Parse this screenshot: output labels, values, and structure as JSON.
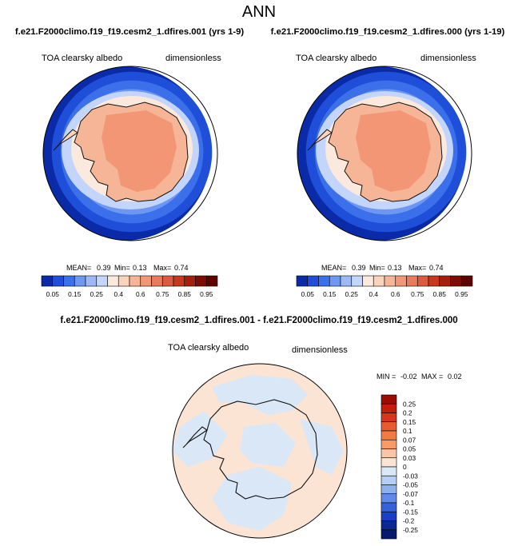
{
  "page_title": "ANN",
  "chart_data": [
    {
      "type": "heatmap",
      "projection": "south-polar-stereographic",
      "title": "f.e21.F2000climo.f19_f19.cesm2_1.dfires.001 (yrs 1-9)",
      "variable": "TOA clearsky albedo",
      "units": "dimensionless",
      "stats": {
        "mean_label": "MEAN=",
        "mean": "0.39",
        "min_label": "Min=",
        "min": "0.13",
        "max_label": "Max=",
        "max": "0.74"
      },
      "colorbar": {
        "orientation": "horizontal",
        "levels": [
          0.05,
          0.1,
          0.15,
          0.2,
          0.25,
          0.3,
          0.4,
          0.5,
          0.6,
          0.7,
          0.75,
          0.8,
          0.85,
          0.9,
          0.95
        ],
        "tick_labels": [
          "0.05",
          "0.15",
          "0.25",
          "0.4",
          "0.6",
          "0.75",
          "0.85",
          "0.95"
        ]
      }
    },
    {
      "type": "heatmap",
      "projection": "south-polar-stereographic",
      "title": "f.e21.F2000climo.f19_f19.cesm2_1.dfires.000 (yrs 1-19)",
      "variable": "TOA clearsky albedo",
      "units": "dimensionless",
      "stats": {
        "mean_label": "MEAN=",
        "mean": "0.39",
        "min_label": "Min=",
        "min": "0.13",
        "max_label": "Max=",
        "max": "0.74"
      },
      "colorbar": {
        "orientation": "horizontal",
        "levels": [
          0.05,
          0.1,
          0.15,
          0.2,
          0.25,
          0.3,
          0.4,
          0.5,
          0.6,
          0.7,
          0.75,
          0.8,
          0.85,
          0.9,
          0.95
        ],
        "tick_labels": [
          "0.05",
          "0.15",
          "0.25",
          "0.4",
          "0.6",
          "0.75",
          "0.85",
          "0.95"
        ]
      }
    },
    {
      "type": "heatmap",
      "projection": "south-polar-stereographic",
      "title": "f.e21.F2000climo.f19_f19.cesm2_1.dfires.001 - f.e21.F2000climo.f19_f19.cesm2_1.dfires.000",
      "variable": "TOA clearsky albedo",
      "units": "dimensionless",
      "stats": {
        "min_label": "MIN =",
        "min": "-0.02",
        "max_label": "MAX =",
        "max": "0.02"
      },
      "colorbar": {
        "orientation": "vertical",
        "levels": [
          0.25,
          0.2,
          0.15,
          0.1,
          0.07,
          0.05,
          0.03,
          0,
          -0.03,
          -0.05,
          -0.07,
          -0.1,
          -0.15,
          -0.2,
          -0.25
        ],
        "tick_labels": [
          "0.25",
          "0.2",
          "0.15",
          "0.1",
          "0.07",
          "0.05",
          "0.03",
          "0",
          "-0.03",
          "-0.05",
          "-0.07",
          "-0.1",
          "-0.15",
          "-0.2",
          "-0.25"
        ]
      }
    }
  ],
  "colors": {
    "albedo_bands": [
      "#0a2aa8",
      "#1f4fd8",
      "#3c6fea",
      "#6e96f3",
      "#9cb8f7",
      "#c3d5fa",
      "#fbe9de",
      "#fad3bd",
      "#f7b597",
      "#f29676",
      "#ea7a5d",
      "#dc5a40",
      "#c6391f",
      "#a51f0d",
      "#7e0b04",
      "#5e0000"
    ],
    "diff_positive": "#fbe4d4",
    "diff_negative": "#d9e7f7",
    "diff_bar": [
      "#9b0c05",
      "#c01f0b",
      "#d8351b",
      "#e85a30",
      "#f27a44",
      "#f89b66",
      "#fbc7a3",
      "#fbe4d4",
      "#d9e7f7",
      "#b5cef1",
      "#8eb0ee",
      "#5f8ae9",
      "#3562db",
      "#1a3fc0",
      "#0a2796",
      "#061a6e"
    ],
    "coastline": "#111111"
  }
}
